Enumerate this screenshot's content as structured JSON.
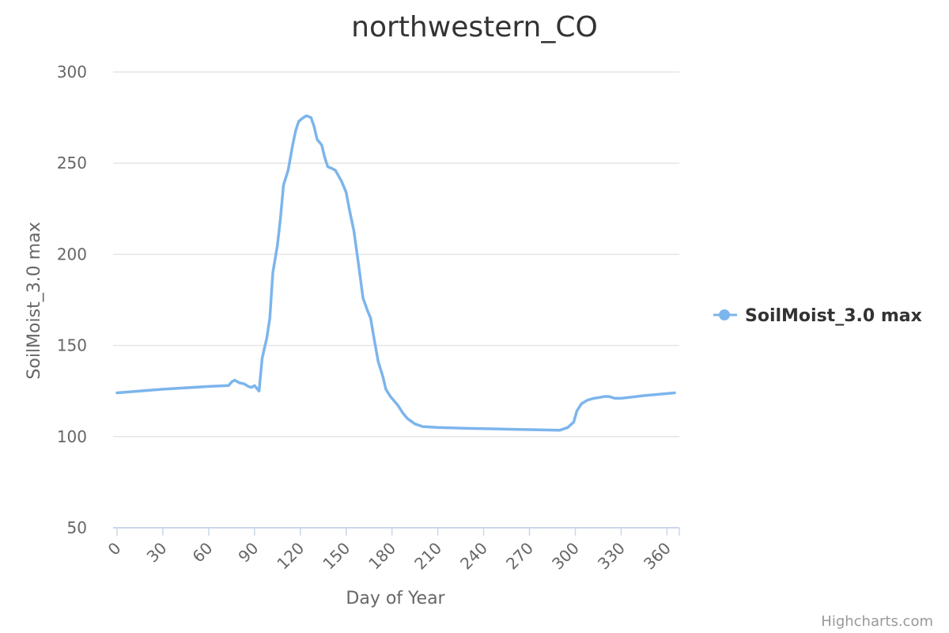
{
  "chart_data": {
    "type": "line",
    "title": "northwestern_CO",
    "xlabel": "Day of Year",
    "ylabel": "SoilMoist_3.0 max",
    "xlim": [
      0,
      365
    ],
    "ylim": [
      50,
      300
    ],
    "x_ticks": [
      0,
      30,
      60,
      90,
      120,
      150,
      180,
      210,
      240,
      270,
      300,
      330,
      360
    ],
    "y_ticks": [
      50,
      100,
      150,
      200,
      250,
      300
    ],
    "grid": true,
    "legend_position": "right",
    "series": [
      {
        "name": "SoilMoist_3.0 max",
        "color": "#7cb5ec",
        "points": [
          [
            0,
            124
          ],
          [
            30,
            126
          ],
          [
            60,
            127.5
          ],
          [
            73,
            128
          ],
          [
            75,
            130
          ],
          [
            77,
            131
          ],
          [
            80,
            129.5
          ],
          [
            83,
            129
          ],
          [
            86,
            127.5
          ],
          [
            88,
            127
          ],
          [
            90,
            128
          ],
          [
            93,
            125
          ],
          [
            95,
            143
          ],
          [
            98,
            154
          ],
          [
            100,
            165
          ],
          [
            102,
            190
          ],
          [
            105,
            205
          ],
          [
            107,
            220
          ],
          [
            109,
            238
          ],
          [
            112,
            246
          ],
          [
            115,
            260
          ],
          [
            117,
            268
          ],
          [
            119,
            273
          ],
          [
            122,
            275
          ],
          [
            124,
            276
          ],
          [
            127,
            275
          ],
          [
            129,
            270
          ],
          [
            131,
            263
          ],
          [
            134,
            260
          ],
          [
            136,
            253
          ],
          [
            138,
            248
          ],
          [
            141,
            247
          ],
          [
            143,
            246
          ],
          [
            145,
            243
          ],
          [
            147,
            240
          ],
          [
            150,
            234
          ],
          [
            152,
            225
          ],
          [
            155,
            213
          ],
          [
            158,
            195
          ],
          [
            161,
            176
          ],
          [
            164,
            169
          ],
          [
            166,
            165
          ],
          [
            168,
            155
          ],
          [
            171,
            141
          ],
          [
            174,
            133
          ],
          [
            176,
            126
          ],
          [
            179,
            122
          ],
          [
            184,
            117
          ],
          [
            187,
            113
          ],
          [
            190,
            110
          ],
          [
            195,
            107
          ],
          [
            200,
            105.5
          ],
          [
            210,
            105
          ],
          [
            230,
            104.5
          ],
          [
            260,
            104
          ],
          [
            290,
            103.5
          ],
          [
            295,
            105
          ],
          [
            299,
            108
          ],
          [
            301,
            114
          ],
          [
            304,
            118
          ],
          [
            308,
            120
          ],
          [
            312,
            121
          ],
          [
            316,
            121.5
          ],
          [
            319,
            122
          ],
          [
            322,
            122
          ],
          [
            326,
            121
          ],
          [
            330,
            121
          ],
          [
            345,
            122.5
          ],
          [
            365,
            124
          ]
        ]
      }
    ]
  },
  "credits": "Highcharts.com"
}
